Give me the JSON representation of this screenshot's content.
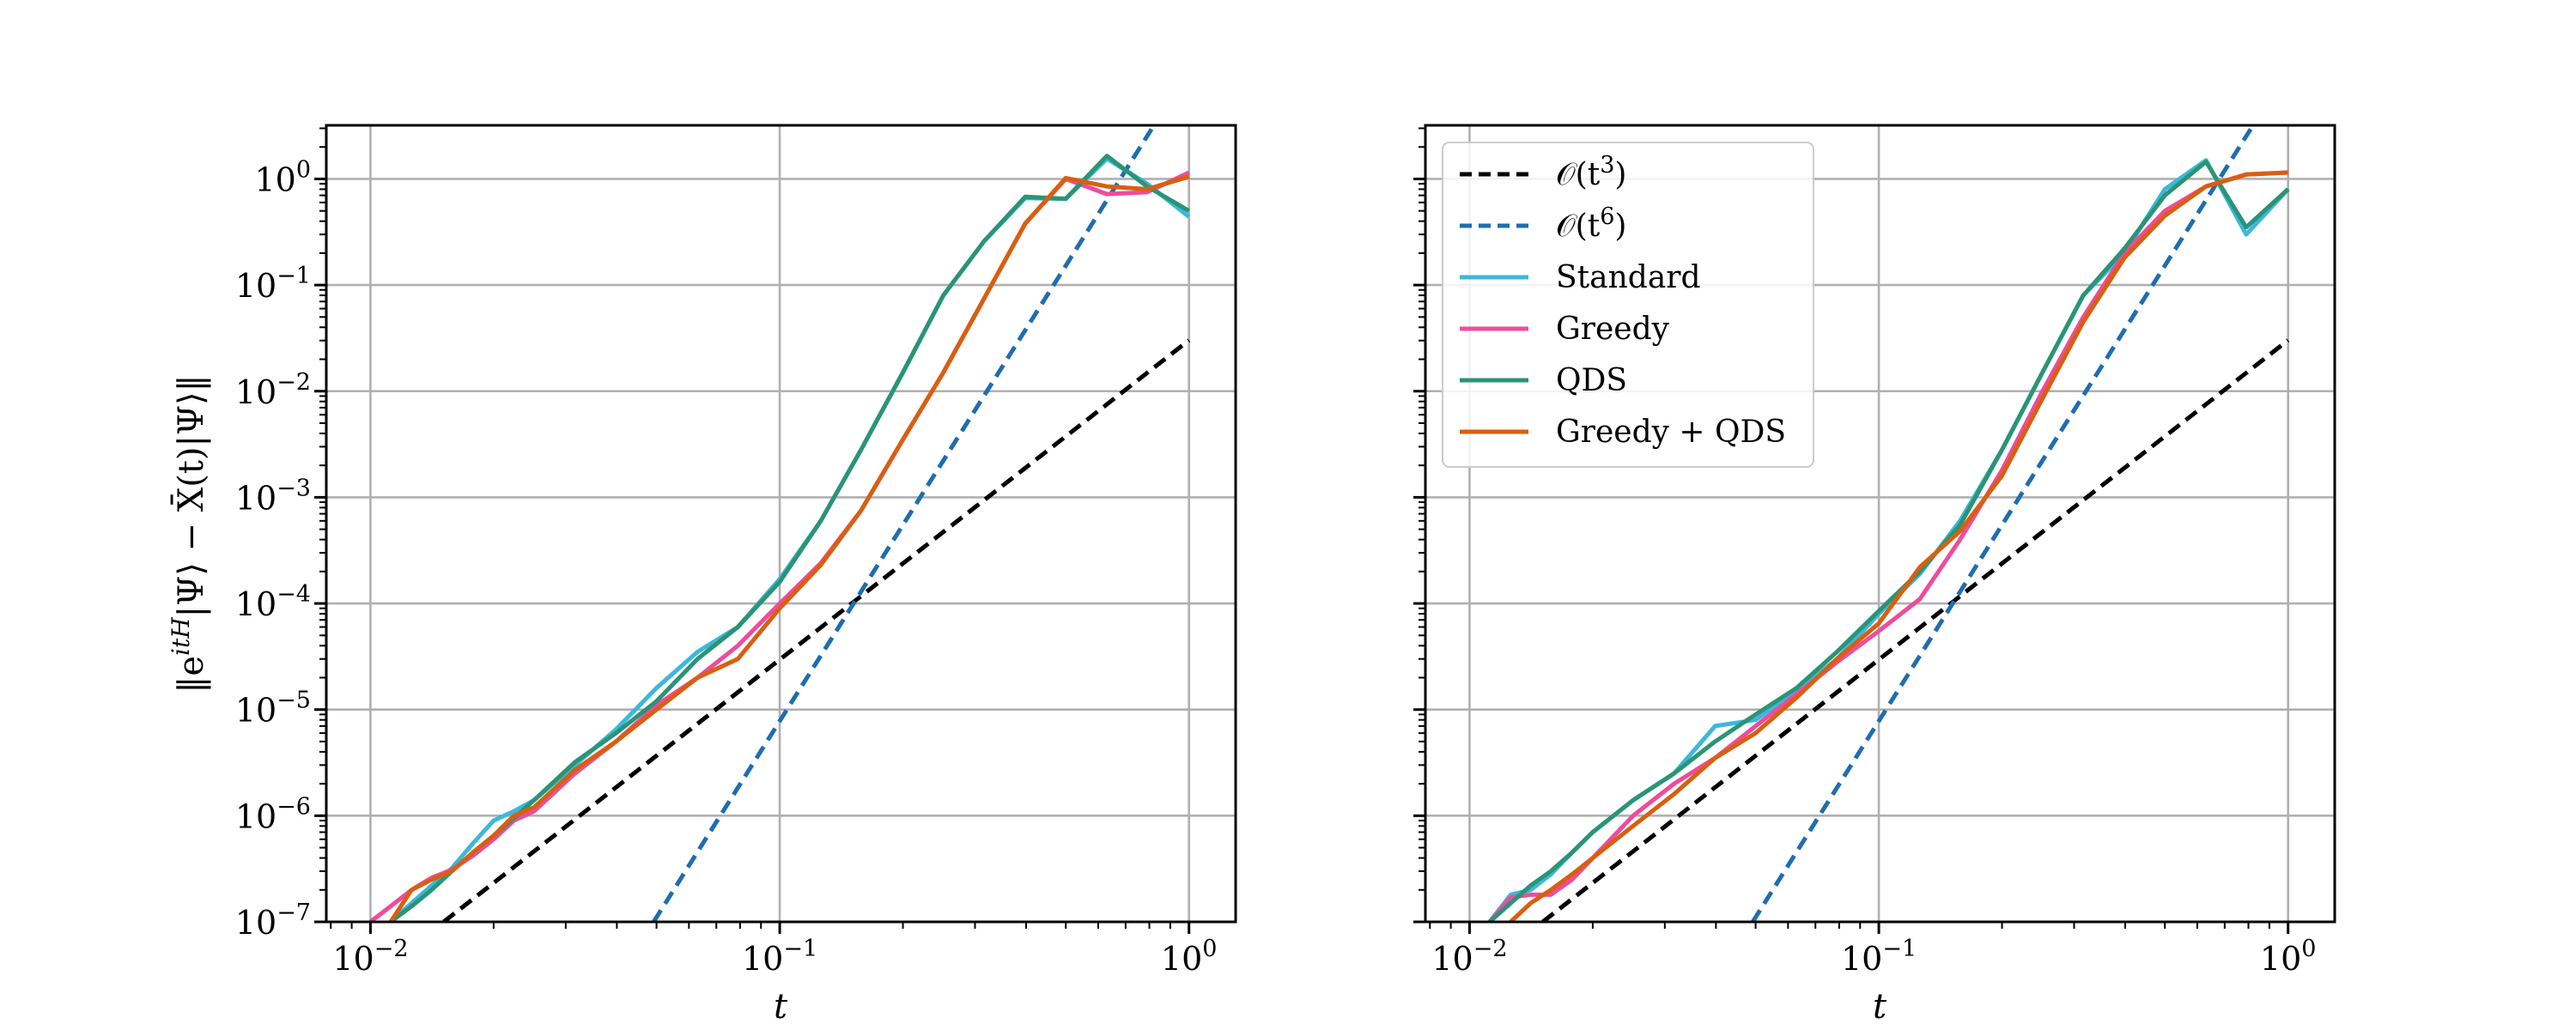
{
  "figure": {
    "shared_ylabel": "‖e^{itH}|Ψ⟩ − X̄(t)|Ψ⟩‖",
    "ylabel_parts": {
      "lhs": "‖e",
      "exp": "itH",
      "rhs": "|Ψ⟩ − X̄(t)|Ψ⟩‖"
    }
  },
  "chart_data": [
    {
      "type": "line",
      "panel": "left",
      "title": "",
      "xlabel": "t",
      "ylabel": "‖e^{itH}|Ψ⟩ − X̄(t)|Ψ⟩‖",
      "xscale": "log",
      "yscale": "log",
      "xlim": [
        0.0078,
        1.3
      ],
      "ylim": [
        1e-07,
        3.2
      ],
      "grid": true,
      "legend": null,
      "x_ticks": [
        {
          "base": "10",
          "exp": "−2"
        },
        {
          "base": "10",
          "exp": "−1"
        },
        {
          "base": "10",
          "exp": "0"
        }
      ],
      "y_ticks": [
        {
          "base": "10",
          "exp": "−7"
        },
        {
          "base": "10",
          "exp": "−6"
        },
        {
          "base": "10",
          "exp": "−5"
        },
        {
          "base": "10",
          "exp": "−4"
        },
        {
          "base": "10",
          "exp": "−3"
        },
        {
          "base": "10",
          "exp": "−2"
        },
        {
          "base": "10",
          "exp": "−1"
        },
        {
          "base": "10",
          "exp": "0"
        }
      ],
      "series": [
        {
          "name": "O(t^3)",
          "style": "dashed",
          "color": "#000000",
          "x": [
            0.0151,
            1.0
          ],
          "y": [
            1e-07,
            0.0302
          ]
        },
        {
          "name": "O(t^6)",
          "style": "dashed",
          "color": "#1f6db0",
          "x": [
            0.0492,
            0.81
          ],
          "y": [
            1e-07,
            2.95
          ]
        },
        {
          "name": "Standard",
          "style": "solid",
          "color": "#3cb8dc",
          "x": [
            0.0112,
            0.0126,
            0.0141,
            0.0158,
            0.0178,
            0.02,
            0.0224,
            0.0251,
            0.0316,
            0.0398,
            0.05,
            0.063,
            0.079,
            0.1,
            0.126,
            0.158,
            0.2,
            0.251,
            0.316,
            0.398,
            0.5,
            0.63,
            0.79,
            1.0
          ],
          "y": [
            1e-07,
            1.5e-07,
            2.2e-07,
            3.2e-07,
            5.5e-07,
            9e-07,
            1.1e-06,
            1.4e-06,
            3e-06,
            6.5e-06,
            1.6e-05,
            3.5e-05,
            6e-05,
            0.00017,
            0.0006,
            0.0028,
            0.015,
            0.08,
            0.26,
            0.66,
            0.65,
            1.55,
            0.9,
            0.44
          ]
        },
        {
          "name": "Greedy",
          "style": "solid",
          "color": "#ee4c9c",
          "x": [
            0.01,
            0.0112,
            0.0126,
            0.0141,
            0.0158,
            0.0178,
            0.02,
            0.0224,
            0.0251,
            0.0316,
            0.0398,
            0.05,
            0.063,
            0.079,
            0.1,
            0.126,
            0.158,
            0.2,
            0.251,
            0.316,
            0.398,
            0.5,
            0.63,
            0.79,
            1.0
          ],
          "y": [
            1e-07,
            1.4e-07,
            2e-07,
            2.6e-07,
            3.1e-07,
            4.2e-07,
            6e-07,
            9e-07,
            1.1e-06,
            2.5e-06,
            5e-06,
            1.1e-05,
            2e-05,
            4e-05,
            0.0001,
            0.00024,
            0.00075,
            0.0035,
            0.015,
            0.075,
            0.38,
            1.0,
            0.72,
            0.75,
            1.15
          ]
        },
        {
          "name": "QDS",
          "style": "solid",
          "color": "#2a9476",
          "x": [
            0.0112,
            0.0126,
            0.0141,
            0.0158,
            0.0178,
            0.02,
            0.0224,
            0.0251,
            0.0316,
            0.0398,
            0.05,
            0.063,
            0.079,
            0.1,
            0.126,
            0.158,
            0.2,
            0.251,
            0.316,
            0.398,
            0.5,
            0.63,
            0.79,
            1.0
          ],
          "y": [
            1e-07,
            1.4e-07,
            2e-07,
            3e-07,
            4.5e-07,
            6.5e-07,
            9.5e-07,
            1.4e-06,
            3.2e-06,
            6e-06,
            1.2e-05,
            3e-05,
            6e-05,
            0.00016,
            0.0006,
            0.0028,
            0.015,
            0.08,
            0.26,
            0.68,
            0.65,
            1.65,
            0.85,
            0.5
          ]
        },
        {
          "name": "Greedy + QDS",
          "style": "solid",
          "color": "#d95f0e",
          "x": [
            0.0112,
            0.0126,
            0.0141,
            0.0158,
            0.0178,
            0.02,
            0.0224,
            0.0251,
            0.0316,
            0.0398,
            0.05,
            0.063,
            0.079,
            0.1,
            0.126,
            0.158,
            0.2,
            0.251,
            0.316,
            0.398,
            0.5,
            0.63,
            0.79,
            1.0
          ],
          "y": [
            1e-07,
            2e-07,
            2.5e-07,
            3e-07,
            4.5e-07,
            6.5e-07,
            1e-06,
            1.2e-06,
            2.7e-06,
            5e-06,
            1e-05,
            2e-05,
            3e-05,
            9e-05,
            0.00023,
            0.00075,
            0.0035,
            0.015,
            0.075,
            0.38,
            1.02,
            0.85,
            0.8,
            1.05
          ]
        }
      ]
    },
    {
      "type": "line",
      "panel": "right",
      "title": "",
      "xlabel": "t",
      "ylabel": "",
      "xscale": "log",
      "yscale": "log",
      "xlim": [
        0.0078,
        1.3
      ],
      "ylim": [
        1e-07,
        3.2
      ],
      "grid": true,
      "legend": "top-left",
      "x_ticks": [
        {
          "base": "10",
          "exp": "−2"
        },
        {
          "base": "10",
          "exp": "−1"
        },
        {
          "base": "10",
          "exp": "0"
        }
      ],
      "y_ticks": [],
      "legend_entries": [
        {
          "label_main": "𝒪(t",
          "label_exp": "3",
          "label_tail": ")",
          "color": "#000000",
          "style": "dashed"
        },
        {
          "label_main": "𝒪(t",
          "label_exp": "6",
          "label_tail": ")",
          "color": "#1f6db0",
          "style": "dashed"
        },
        {
          "label_main": "Standard",
          "label_exp": "",
          "label_tail": "",
          "color": "#3cb8dc",
          "style": "solid"
        },
        {
          "label_main": "Greedy",
          "label_exp": "",
          "label_tail": "",
          "color": "#ee4c9c",
          "style": "solid"
        },
        {
          "label_main": "QDS",
          "label_exp": "",
          "label_tail": "",
          "color": "#2a9476",
          "style": "solid"
        },
        {
          "label_main": "Greedy + QDS",
          "label_exp": "",
          "label_tail": "",
          "color": "#d95f0e",
          "style": "solid"
        }
      ],
      "series": [
        {
          "name": "O(t^3)",
          "style": "dashed",
          "color": "#000000",
          "x": [
            0.0151,
            1.0
          ],
          "y": [
            1e-07,
            0.0302
          ]
        },
        {
          "name": "O(t^6)",
          "style": "dashed",
          "color": "#1f6db0",
          "x": [
            0.0492,
            0.81
          ],
          "y": [
            1e-07,
            2.95
          ]
        },
        {
          "name": "Standard",
          "style": "solid",
          "color": "#3cb8dc",
          "x": [
            0.0112,
            0.0126,
            0.0141,
            0.0158,
            0.0178,
            0.02,
            0.0251,
            0.0316,
            0.0398,
            0.05,
            0.063,
            0.079,
            0.1,
            0.126,
            0.158,
            0.2,
            0.251,
            0.316,
            0.398,
            0.5,
            0.63,
            0.79,
            1.0
          ],
          "y": [
            1e-07,
            1.8e-07,
            2e-07,
            2.8e-07,
            4.5e-07,
            7e-07,
            1.4e-06,
            2.5e-06,
            7e-06,
            8e-06,
            1.5e-05,
            3e-05,
            8e-05,
            0.00019,
            0.0006,
            0.0028,
            0.015,
            0.08,
            0.2,
            0.8,
            1.5,
            0.3,
            0.8
          ]
        },
        {
          "name": "Greedy",
          "style": "solid",
          "color": "#ee4c9c",
          "x": [
            0.0112,
            0.0126,
            0.0141,
            0.0158,
            0.0178,
            0.02,
            0.0251,
            0.0316,
            0.0398,
            0.05,
            0.063,
            0.079,
            0.1,
            0.126,
            0.158,
            0.2,
            0.251,
            0.316,
            0.398,
            0.5,
            0.63,
            0.79,
            1.0
          ],
          "y": [
            1e-07,
            1.7e-07,
            1.8e-07,
            1.8e-07,
            2.5e-07,
            4e-07,
            1e-06,
            2e-06,
            3.5e-06,
            7e-06,
            1.4e-05,
            2.8e-05,
            5.5e-05,
            0.00011,
            0.0004,
            0.0018,
            0.01,
            0.05,
            0.2,
            0.5,
            0.85,
            1.1,
            1.15
          ]
        },
        {
          "name": "QDS",
          "style": "solid",
          "color": "#2a9476",
          "x": [
            0.0112,
            0.0126,
            0.0141,
            0.0158,
            0.0178,
            0.02,
            0.0251,
            0.0316,
            0.0398,
            0.05,
            0.063,
            0.079,
            0.1,
            0.126,
            0.158,
            0.2,
            0.251,
            0.316,
            0.398,
            0.5,
            0.63,
            0.79,
            1.0
          ],
          "y": [
            1e-07,
            1.5e-07,
            2.2e-07,
            3e-07,
            4.5e-07,
            7e-07,
            1.4e-06,
            2.5e-06,
            5e-06,
            9e-06,
            1.6e-05,
            3.5e-05,
            8.5e-05,
            0.0002,
            0.00055,
            0.0028,
            0.015,
            0.08,
            0.22,
            0.7,
            1.45,
            0.35,
            0.8
          ]
        },
        {
          "name": "Greedy + QDS",
          "style": "solid",
          "color": "#d95f0e",
          "x": [
            0.0126,
            0.0141,
            0.0158,
            0.0178,
            0.02,
            0.0251,
            0.0316,
            0.0398,
            0.05,
            0.063,
            0.079,
            0.1,
            0.126,
            0.158,
            0.2,
            0.251,
            0.316,
            0.398,
            0.5,
            0.63,
            0.79,
            1.0
          ],
          "y": [
            1e-07,
            1.5e-07,
            2e-07,
            2.8e-07,
            4e-07,
            8e-07,
            1.6e-06,
            3.5e-06,
            6e-06,
            1.3e-05,
            3e-05,
            6.5e-05,
            0.00022,
            0.00048,
            0.0016,
            0.0085,
            0.045,
            0.18,
            0.45,
            0.85,
            1.1,
            1.15
          ]
        }
      ]
    }
  ]
}
